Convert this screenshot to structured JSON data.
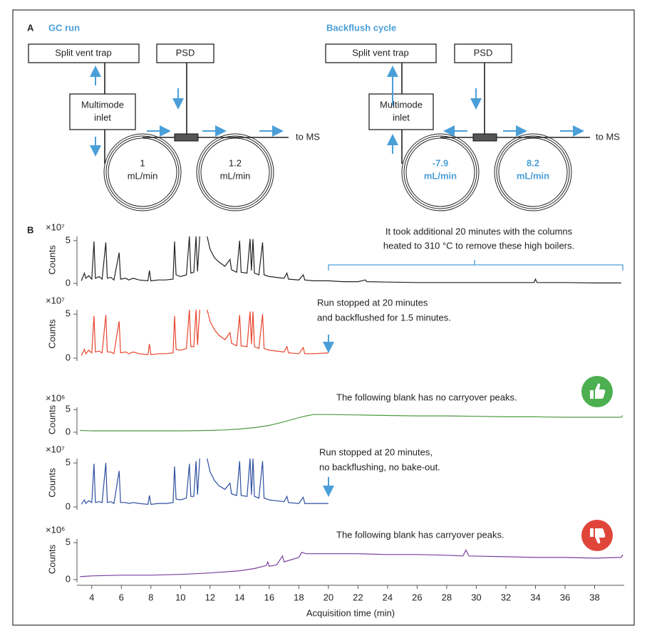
{
  "panel_a": {
    "label": "A",
    "gc_run": {
      "title": "GC run",
      "split_vent_trap": "Split vent trap",
      "psd": "PSD",
      "inlet": [
        "Multimode",
        "inlet"
      ],
      "to_ms": "to MS",
      "flows": [
        [
          "1",
          "mL/min"
        ],
        [
          "1.2",
          "mL/min"
        ]
      ]
    },
    "backflush": {
      "title": "Backflush cycle",
      "split_vent_trap": "Split vent trap",
      "psd": "PSD",
      "inlet": [
        "Multimode",
        "inlet"
      ],
      "to_ms": "to MS",
      "flows": [
        [
          "-7.9",
          "mL/min"
        ],
        [
          "8.2",
          "mL/min"
        ]
      ]
    }
  },
  "panel_b": {
    "label": "B"
  },
  "chart_data": [
    {
      "type": "line",
      "color": "#222222",
      "multiplier": "×10⁷",
      "ylabel": "Counts",
      "ylim": [
        0,
        5.5
      ],
      "yticks": [
        0,
        5
      ],
      "xlim": [
        3,
        40
      ],
      "annotation": [
        "It took additional 20 minutes with the columns",
        "heated to 310 °C to remove these high boilers."
      ],
      "x": [
        3.3,
        3.5,
        3.6,
        3.8,
        4.0,
        4.15,
        4.25,
        4.5,
        4.7,
        4.95,
        5.05,
        5.3,
        5.5,
        5.85,
        5.95,
        6.3,
        6.5,
        6.8,
        7.2,
        7.8,
        7.9,
        8.0,
        8.5,
        9.0,
        9.5,
        9.6,
        9.7,
        10.0,
        10.4,
        10.6,
        10.7,
        10.9,
        11.05,
        11.15,
        11.3,
        11.5,
        11.8,
        12.0,
        12.3,
        12.6,
        13.0,
        13.35,
        13.45,
        13.8,
        14.0,
        14.1,
        14.5,
        14.7,
        14.8,
        14.9,
        15.0,
        15.3,
        15.55,
        15.65,
        16.0,
        16.5,
        17.0,
        17.2,
        17.3,
        18.0,
        18.3,
        18.4,
        19.0,
        20,
        21,
        22,
        22.5,
        22.6,
        24,
        26,
        28,
        30,
        32,
        33.9,
        34,
        34.1,
        36,
        38,
        39.8
      ],
      "values": [
        0.3,
        1.2,
        0.6,
        0.9,
        0.5,
        4.9,
        0.6,
        0.8,
        0.5,
        4.8,
        0.6,
        0.7,
        0.4,
        3.6,
        0.5,
        0.6,
        0.4,
        0.6,
        0.4,
        0.3,
        1.5,
        0.3,
        0.4,
        0.4,
        0.5,
        4.9,
        1.0,
        0.8,
        1.0,
        5.5,
        1.2,
        1.3,
        5.5,
        1.4,
        5.5,
        null,
        5.5,
        4.0,
        3.0,
        2.5,
        2.0,
        2.8,
        1.6,
        1.3,
        5.0,
        1.3,
        1.2,
        5.2,
        1.5,
        5.2,
        1.2,
        1.0,
        4.8,
        1.0,
        0.8,
        0.7,
        0.6,
        1.2,
        0.5,
        0.4,
        1.0,
        0.4,
        0.3,
        0.3,
        0.2,
        0.2,
        0.4,
        0.2,
        0.15,
        0.1,
        0.1,
        0.1,
        0.1,
        0.1,
        0.5,
        0.1,
        0.1,
        0.05,
        0.05
      ]
    },
    {
      "type": "line",
      "color": "#e8452e",
      "multiplier": "×10⁷",
      "ylabel": "Counts",
      "ylim": [
        0,
        5.5
      ],
      "yticks": [
        0,
        5
      ],
      "xlim": [
        3,
        40
      ],
      "annotation": [
        "Run stopped at 20 minutes",
        "and backflushed for 1.5 minutes."
      ],
      "x": [
        3.3,
        3.5,
        3.6,
        3.8,
        4.0,
        4.15,
        4.25,
        4.5,
        4.7,
        4.95,
        5.05,
        5.3,
        5.5,
        5.85,
        5.95,
        6.3,
        6.5,
        6.8,
        7.2,
        7.8,
        7.9,
        8.0,
        8.5,
        9.0,
        9.5,
        9.6,
        9.7,
        10.0,
        10.4,
        10.6,
        10.7,
        10.9,
        11.05,
        11.15,
        11.3,
        11.5,
        11.8,
        12.0,
        12.3,
        12.6,
        13.0,
        13.35,
        13.45,
        13.8,
        14.0,
        14.1,
        14.5,
        14.7,
        14.8,
        14.9,
        15.0,
        15.3,
        15.55,
        15.65,
        16.0,
        16.5,
        17.0,
        17.2,
        17.3,
        18.0,
        18.3,
        18.4,
        19.0,
        20.0
      ],
      "values": [
        0.3,
        1.0,
        0.5,
        0.9,
        0.6,
        4.8,
        0.7,
        0.8,
        0.6,
        4.9,
        0.7,
        0.7,
        0.5,
        4.2,
        0.6,
        0.7,
        0.5,
        0.7,
        0.5,
        0.4,
        1.6,
        0.4,
        0.5,
        0.5,
        0.6,
        4.8,
        1.0,
        0.9,
        1.1,
        5.5,
        1.3,
        1.3,
        5.5,
        1.5,
        5.5,
        null,
        5.5,
        4.2,
        3.2,
        2.6,
        2.1,
        2.9,
        1.7,
        1.4,
        4.9,
        1.4,
        1.3,
        5.3,
        1.6,
        5.3,
        1.3,
        1.1,
        5.0,
        1.1,
        0.9,
        0.8,
        0.7,
        1.3,
        0.6,
        0.5,
        1.2,
        0.5,
        0.5,
        0.6
      ]
    },
    {
      "type": "line",
      "color": "#4f9a43",
      "multiplier": "×10⁶",
      "ylabel": "Counts",
      "ylim": [
        0,
        5.5
      ],
      "yticks": [
        0,
        5
      ],
      "xlim": [
        3,
        40
      ],
      "annotation": [
        "The following blank has no carryover peaks."
      ],
      "x": [
        3.2,
        4,
        6,
        8,
        10,
        12,
        13,
        14,
        15,
        16,
        17,
        18,
        18.5,
        19,
        20,
        22,
        24,
        26,
        28,
        30,
        32,
        34,
        36,
        38,
        39.8,
        39.9
      ],
      "values": [
        0.4,
        0.3,
        0.3,
        0.3,
        0.3,
        0.4,
        0.5,
        0.7,
        1.0,
        1.5,
        2.3,
        3.2,
        3.6,
        3.9,
        3.9,
        3.8,
        3.7,
        3.6,
        3.6,
        3.5,
        3.4,
        3.4,
        3.3,
        3.3,
        3.3,
        3.7
      ]
    },
    {
      "type": "line",
      "color": "#2d4fa0",
      "multiplier": "×10⁷",
      "ylabel": "Counts",
      "ylim": [
        0,
        5.5
      ],
      "yticks": [
        0,
        5
      ],
      "xlim": [
        3,
        40
      ],
      "annotation": [
        "Run stopped at 20 minutes,",
        "no backflushing, no bake-out."
      ],
      "x": [
        3.3,
        3.5,
        3.6,
        3.8,
        4.0,
        4.15,
        4.25,
        4.5,
        4.7,
        4.95,
        5.05,
        5.3,
        5.5,
        5.85,
        5.95,
        6.3,
        6.5,
        6.8,
        7.2,
        7.8,
        7.9,
        8.0,
        8.5,
        9.0,
        9.5,
        9.6,
        9.7,
        10.0,
        10.4,
        10.6,
        10.7,
        10.9,
        11.05,
        11.15,
        11.3,
        11.5,
        11.8,
        12.0,
        12.3,
        12.6,
        13.0,
        13.35,
        13.45,
        13.8,
        14.0,
        14.1,
        14.5,
        14.7,
        14.8,
        14.9,
        15.0,
        15.3,
        15.55,
        15.65,
        16.0,
        16.5,
        17.0,
        17.2,
        17.3,
        18.0,
        18.3,
        18.4,
        19.0,
        20.0
      ],
      "values": [
        0.3,
        0.8,
        0.4,
        0.7,
        0.5,
        4.9,
        0.5,
        0.6,
        0.5,
        5.0,
        0.5,
        0.6,
        0.4,
        4.1,
        0.5,
        0.5,
        0.4,
        0.5,
        0.4,
        0.3,
        1.3,
        0.3,
        0.4,
        0.4,
        0.5,
        4.6,
        0.9,
        0.8,
        1.0,
        4.9,
        1.2,
        1.2,
        5.2,
        1.4,
        5.5,
        null,
        5.5,
        4.0,
        3.0,
        2.4,
        2.0,
        2.7,
        1.5,
        1.3,
        5.2,
        1.3,
        1.2,
        5.5,
        1.4,
        5.5,
        1.2,
        1.0,
        5.2,
        1.0,
        0.8,
        0.7,
        0.6,
        1.2,
        0.5,
        0.4,
        1.1,
        0.4,
        0.4,
        0.4
      ]
    },
    {
      "type": "line",
      "color": "#7a3fa0",
      "multiplier": "×10⁶",
      "ylabel": "Counts",
      "ylim": [
        0,
        5.5
      ],
      "yticks": [
        0,
        5
      ],
      "xlim": [
        3,
        40
      ],
      "annotation": [
        "The following blank has carryover peaks."
      ],
      "xlabel": "Acquisition time (min)",
      "xticks": [
        4,
        6,
        8,
        10,
        12,
        14,
        16,
        18,
        20,
        22,
        24,
        26,
        28,
        30,
        32,
        34,
        36,
        38
      ],
      "x": [
        3.2,
        4,
        6,
        8,
        10,
        12,
        14,
        15,
        15.8,
        15.9,
        16.0,
        16.5,
        16.9,
        17.0,
        17.5,
        18.0,
        18.2,
        18.5,
        19,
        20,
        22,
        24,
        26,
        28,
        29.1,
        29.3,
        29.5,
        32,
        34,
        36,
        38,
        39.8,
        39.9
      ],
      "values": [
        0.4,
        0.5,
        0.6,
        0.6,
        0.7,
        0.9,
        1.2,
        1.5,
        1.9,
        2.4,
        1.8,
        2.0,
        3.2,
        2.4,
        2.7,
        3.0,
        3.7,
        3.5,
        3.5,
        3.5,
        3.5,
        3.4,
        3.4,
        3.3,
        3.2,
        4.0,
        3.2,
        3.1,
        3.0,
        3.0,
        2.9,
        3.0,
        3.4
      ]
    }
  ]
}
